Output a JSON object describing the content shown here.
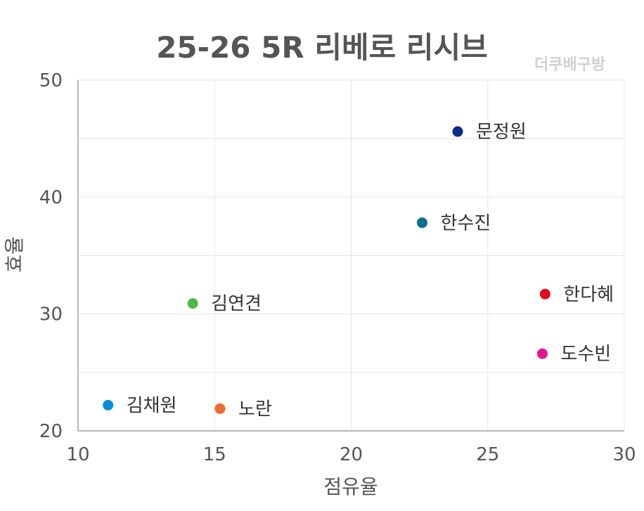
{
  "chart_data": {
    "type": "scatter",
    "title": "25-26 5R 리베로 리시브",
    "watermark": "더쿠배구방",
    "xlabel": "점유율",
    "ylabel": "효율",
    "xlim": [
      10,
      30
    ],
    "ylim": [
      20,
      50
    ],
    "xticks": [
      "10",
      "15",
      "20",
      "25",
      "30"
    ],
    "yticks": [
      "20",
      "30",
      "40",
      "50"
    ],
    "grid": true,
    "points": [
      {
        "label": "문정원",
        "x": 23.9,
        "y": 45.6,
        "color": "#0a2a8a"
      },
      {
        "label": "한수진",
        "x": 22.6,
        "y": 37.8,
        "color": "#0b6f8f"
      },
      {
        "label": "한다혜",
        "x": 27.1,
        "y": 31.7,
        "color": "#e00d1f"
      },
      {
        "label": "김연견",
        "x": 14.2,
        "y": 30.9,
        "color": "#4cb848"
      },
      {
        "label": "도수빈",
        "x": 27.0,
        "y": 26.6,
        "color": "#e6158c"
      },
      {
        "label": "김채원",
        "x": 11.1,
        "y": 22.2,
        "color": "#0a8fd8"
      },
      {
        "label": "노란",
        "x": 15.2,
        "y": 21.9,
        "color": "#ec6b2d"
      }
    ]
  }
}
